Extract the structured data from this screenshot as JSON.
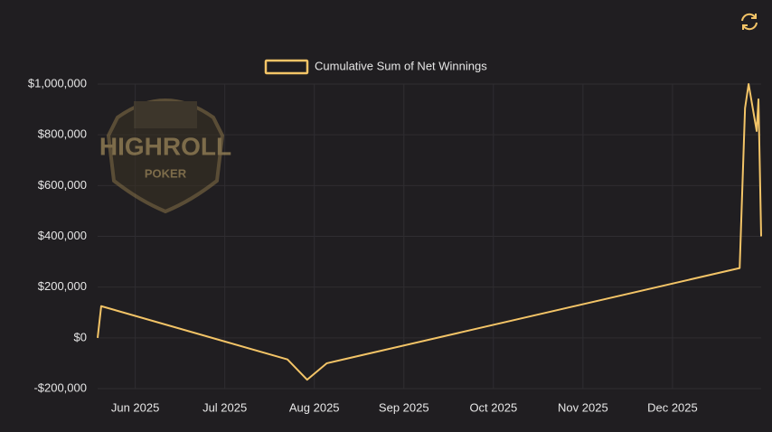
{
  "chart_data": {
    "type": "line",
    "logo": {
      "title": "HIGHROLL",
      "subtitle": "POKER"
    },
    "x": [
      5.58,
      5.62,
      7.7,
      7.92,
      8.14,
      12.75,
      12.81,
      12.85,
      12.94,
      12.96,
      12.99
    ],
    "series": [
      {
        "name": "Cumulative Sum of Net Winnings",
        "color": "#f3c467",
        "values": [
          0,
          125000,
          -85000,
          -165000,
          -100000,
          275000,
          905000,
          1000000,
          815000,
          940000,
          400000
        ]
      }
    ],
    "xlim": [
      5.58,
      12.99
    ],
    "xticks": [
      {
        "value": 6,
        "label": "Jun 2025"
      },
      {
        "value": 7,
        "label": "Jul 2025"
      },
      {
        "value": 8,
        "label": "Aug 2025"
      },
      {
        "value": 9,
        "label": "Sep 2025"
      },
      {
        "value": 10,
        "label": "Oct 2025"
      },
      {
        "value": 11,
        "label": "Nov 2025"
      },
      {
        "value": 12,
        "label": "Dec 2025"
      }
    ],
    "ylim": [
      -200000,
      1000000
    ],
    "yticks": [
      {
        "value": -200000,
        "label": "-$200,000"
      },
      {
        "value": 0,
        "label": "$0"
      },
      {
        "value": 200000,
        "label": "$200,000"
      },
      {
        "value": 400000,
        "label": "$400,000"
      },
      {
        "value": 600000,
        "label": "$600,000"
      },
      {
        "value": 800000,
        "label": "$800,000"
      },
      {
        "value": 1000000,
        "label": "$1,000,000"
      }
    ],
    "grid": true,
    "legend": "top"
  }
}
